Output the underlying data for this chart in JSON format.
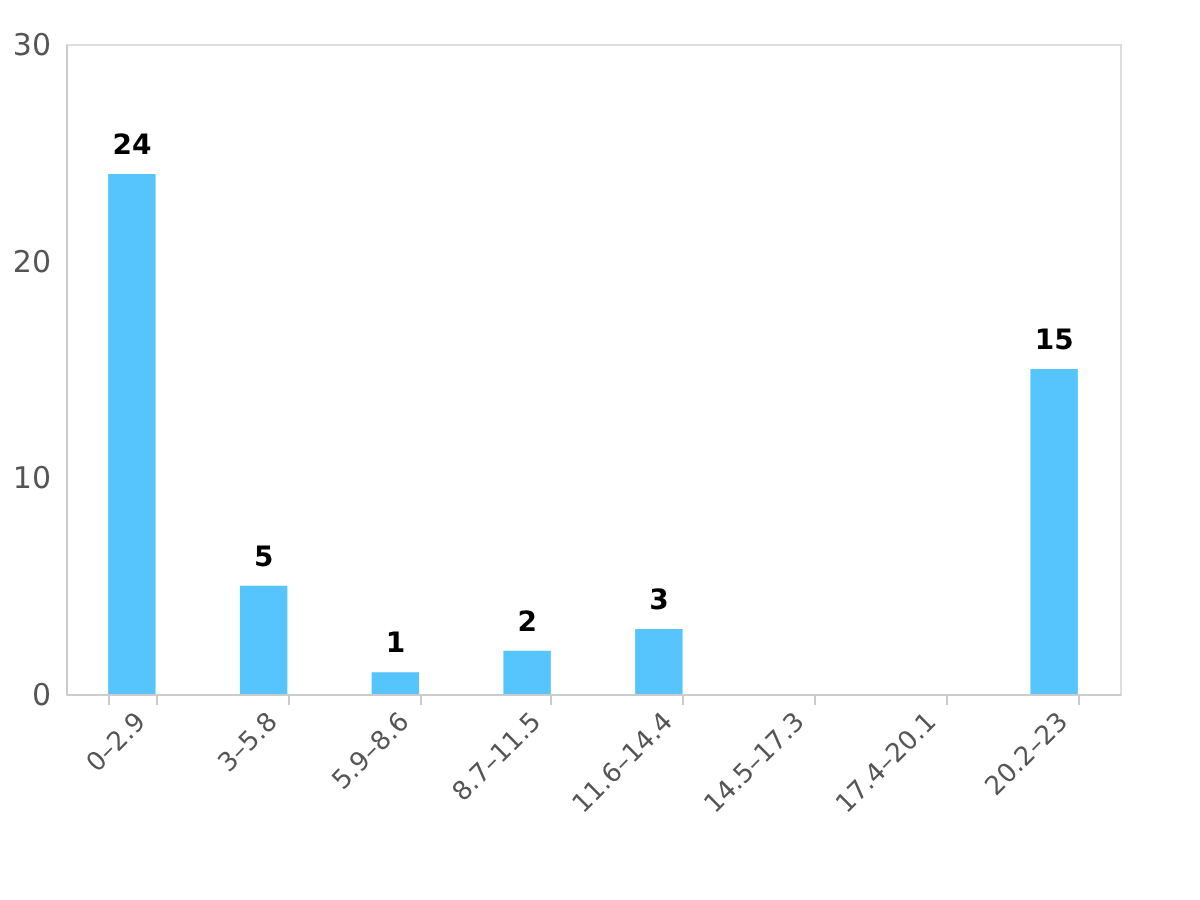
{
  "chart_data": {
    "type": "bar",
    "categories": [
      "0–2.9",
      "3–5.8",
      "5.9–8.6",
      "8.7–11.5",
      "11.6–14.4",
      "14.5–17.3",
      "17.4–20.1",
      "20.2–23"
    ],
    "values": [
      24,
      5,
      1,
      2,
      3,
      0,
      0,
      15
    ],
    "value_labels": [
      "24",
      "5",
      "1",
      "2",
      "3",
      null,
      null,
      "15"
    ],
    "color": "#56c5fe",
    "ylim": [
      0,
      30
    ],
    "yticks": [
      0,
      10,
      20,
      30
    ],
    "grid": false
  }
}
